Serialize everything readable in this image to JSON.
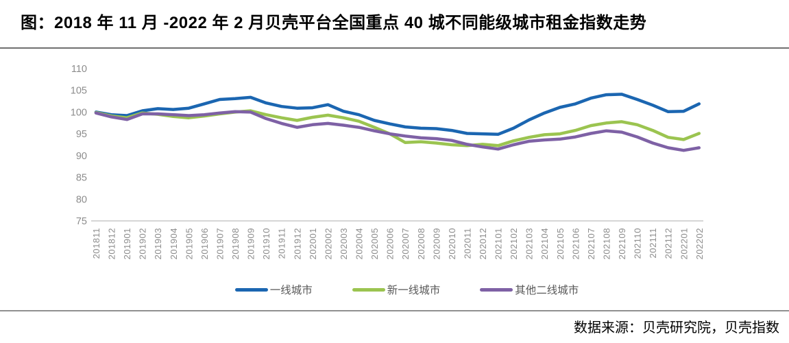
{
  "title": "图：2018 年 11 月 -2022 年 2 月贝壳平台全国重点 40 城不同能级城市租金指数走势",
  "footer": {
    "source": "数据来源：贝壳研究院，贝壳指数"
  },
  "colors": {
    "axis_line": "#c9c9c9",
    "tick_label": "#8c8c8c",
    "legend_text": "#595959",
    "title_rule": "#707070",
    "bottom_rule": "#8f8f8f"
  },
  "chart_data": {
    "type": "line",
    "title": "",
    "xlabel": "",
    "ylabel": "",
    "ylim": [
      75,
      110
    ],
    "yticks": [
      110,
      105,
      100,
      95,
      90,
      85,
      80,
      75
    ],
    "grid": false,
    "legend_position": "bottom",
    "categories": [
      "201811",
      "201812",
      "201901",
      "201902",
      "201903",
      "201904",
      "201905",
      "201906",
      "201907",
      "201908",
      "201909",
      "201910",
      "201911",
      "201912",
      "202001",
      "202002",
      "202003",
      "202004",
      "202005",
      "202006",
      "202007",
      "202008",
      "202009",
      "202010",
      "202011",
      "202012",
      "202101",
      "202102",
      "202103",
      "202104",
      "202105",
      "202106",
      "202107",
      "202108",
      "202109",
      "202110",
      "202111",
      "202112",
      "202201",
      "202202"
    ],
    "series": [
      {
        "name": "一线城市",
        "color": "#1B66B1",
        "values": [
          100.0,
          99.4,
          99.2,
          100.3,
          100.8,
          100.6,
          100.9,
          101.9,
          102.9,
          103.1,
          103.4,
          102.1,
          101.3,
          100.9,
          101.0,
          101.7,
          100.2,
          99.4,
          98.1,
          97.3,
          96.6,
          96.3,
          96.2,
          95.8,
          95.1,
          95.0,
          94.9,
          96.3,
          98.2,
          99.8,
          101.1,
          101.9,
          103.2,
          104.0,
          104.1,
          102.9,
          101.6,
          100.1,
          100.2,
          101.9
        ]
      },
      {
        "name": "新一线城市",
        "color": "#9BC450",
        "values": [
          99.9,
          99.1,
          98.7,
          99.8,
          99.5,
          99.0,
          98.7,
          99.1,
          99.6,
          100.0,
          100.3,
          99.4,
          98.7,
          98.1,
          98.8,
          99.3,
          98.7,
          97.9,
          96.5,
          95.0,
          93.0,
          93.2,
          92.9,
          92.5,
          92.3,
          92.6,
          92.3,
          93.4,
          94.2,
          94.8,
          95.0,
          95.8,
          96.9,
          97.5,
          97.8,
          97.1,
          95.8,
          94.2,
          93.7,
          95.1
        ]
      },
      {
        "name": "其他二线城市",
        "color": "#7E61A5",
        "values": [
          99.8,
          98.9,
          98.3,
          99.6,
          99.6,
          99.4,
          99.2,
          99.4,
          99.8,
          100.1,
          100.0,
          98.5,
          97.4,
          96.5,
          97.1,
          97.4,
          97.0,
          96.5,
          95.7,
          95.0,
          94.5,
          94.1,
          93.9,
          93.5,
          92.6,
          92.0,
          91.5,
          92.5,
          93.3,
          93.6,
          93.8,
          94.3,
          95.1,
          95.7,
          95.4,
          94.3,
          92.9,
          91.8,
          91.2,
          91.8
        ]
      }
    ]
  }
}
